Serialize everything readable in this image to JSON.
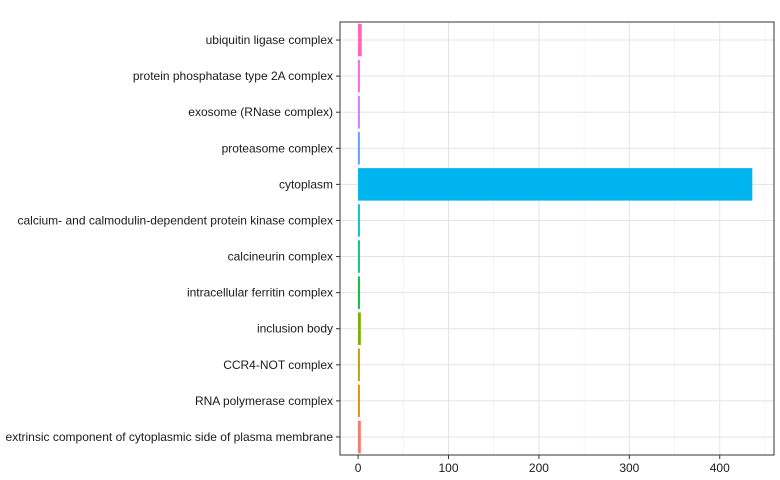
{
  "chart_data": {
    "type": "bar",
    "orientation": "horizontal",
    "categories": [
      "extrinsic component of cytoplasmic side of plasma membrane",
      "RNA polymerase complex",
      "CCR4-NOT complex",
      "inclusion body",
      "intracellular ferritin complex",
      "calcineurin complex",
      "calcium- and calmodulin-dependent protein kinase complex",
      "cytoplasm",
      "proteasome complex",
      "exosome (RNase complex)",
      "protein phosphatase type 2A complex",
      "ubiquitin ligase complex"
    ],
    "values": [
      3,
      2,
      2,
      3,
      2,
      2,
      2,
      436,
      2,
      2,
      2,
      4
    ],
    "colors": [
      "#F8766D",
      "#DE8C00",
      "#B79F00",
      "#7CAE00",
      "#00BA38",
      "#00C08B",
      "#00BFC4",
      "#00B4F0",
      "#619CFF",
      "#C77CFF",
      "#F564E3",
      "#FF64B0"
    ],
    "x_ticks": [
      0,
      100,
      200,
      300,
      400
    ],
    "xlim": [
      -20,
      460
    ],
    "grid": true,
    "legend": "none"
  }
}
